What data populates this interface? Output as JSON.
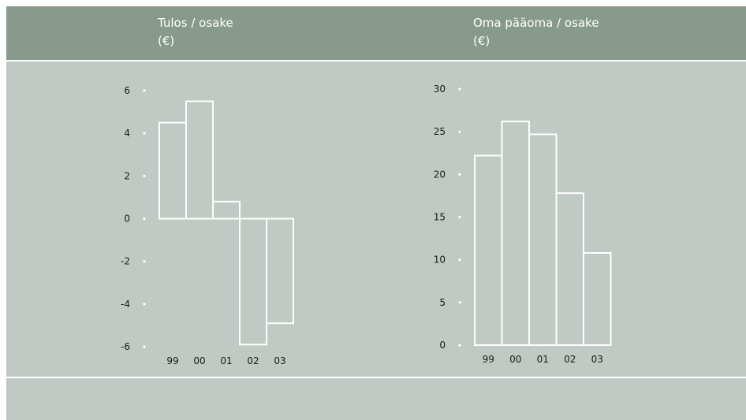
{
  "chart_data": [
    {
      "type": "bar",
      "title": "Tulos / osake",
      "unit": "(€)",
      "categories": [
        "99",
        "00",
        "01",
        "02",
        "03"
      ],
      "values": [
        4.5,
        5.5,
        0.8,
        -5.9,
        -4.9
      ],
      "ylim": [
        -6,
        6
      ],
      "yticks": [
        "6",
        "4",
        "2",
        "0",
        "-2",
        "-4",
        "-6"
      ],
      "ytick_values": [
        6,
        4,
        2,
        0,
        -2,
        -4,
        -6
      ],
      "grid": false,
      "bar_style": "outline",
      "colors": {
        "bar_stroke": "#ffffff",
        "tick_dot": "#ffffff"
      }
    },
    {
      "type": "bar",
      "title": "Oma pääoma / osake",
      "unit": "(€)",
      "categories": [
        "99",
        "00",
        "01",
        "02",
        "03"
      ],
      "values": [
        22.2,
        26.2,
        24.7,
        17.8,
        10.8
      ],
      "ylim": [
        0,
        30
      ],
      "yticks": [
        "30",
        "25",
        "20",
        "15",
        "10",
        "5",
        "0"
      ],
      "ytick_values": [
        30,
        25,
        20,
        15,
        10,
        5,
        0
      ],
      "grid": false,
      "bar_style": "outline",
      "colors": {
        "bar_stroke": "#ffffff",
        "tick_dot": "#ffffff"
      }
    }
  ],
  "colors": {
    "header": "#879a8c",
    "panel": "#c0c9c3",
    "divider": "#ffffff",
    "title_text": "#ffffff"
  }
}
